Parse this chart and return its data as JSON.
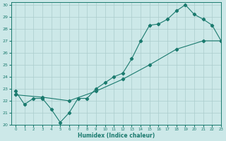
{
  "xlabel": "Humidex (Indice chaleur)",
  "ylabel": "",
  "bg_color": "#cce8e8",
  "grid_color": "#aacccc",
  "line_color": "#1a7a6e",
  "xlim": [
    -0.5,
    23
  ],
  "ylim": [
    20,
    30.2
  ],
  "xticks": [
    0,
    1,
    2,
    3,
    4,
    5,
    6,
    7,
    8,
    9,
    10,
    11,
    12,
    13,
    14,
    15,
    16,
    17,
    18,
    19,
    20,
    21,
    22,
    23
  ],
  "yticks": [
    20,
    21,
    22,
    23,
    24,
    25,
    26,
    27,
    28,
    29,
    30
  ],
  "curve1_x": [
    0,
    1,
    2,
    3,
    4,
    5,
    6,
    7,
    8,
    9,
    10,
    11,
    12,
    13,
    14,
    15,
    16,
    17,
    18,
    19,
    20,
    21,
    22,
    23
  ],
  "curve1_y": [
    22.8,
    21.7,
    22.2,
    22.2,
    21.3,
    20.2,
    21.0,
    22.2,
    22.2,
    23.0,
    23.5,
    24.0,
    24.3,
    25.5,
    27.0,
    28.3,
    28.4,
    28.8,
    29.5,
    30.0,
    29.2,
    28.8,
    28.3,
    27.0
  ],
  "curve2_x": [
    0,
    3,
    6,
    9,
    12,
    15,
    18,
    21,
    23
  ],
  "curve2_y": [
    22.5,
    22.3,
    22.0,
    22.8,
    23.8,
    25.0,
    26.3,
    27.0,
    27.0
  ]
}
